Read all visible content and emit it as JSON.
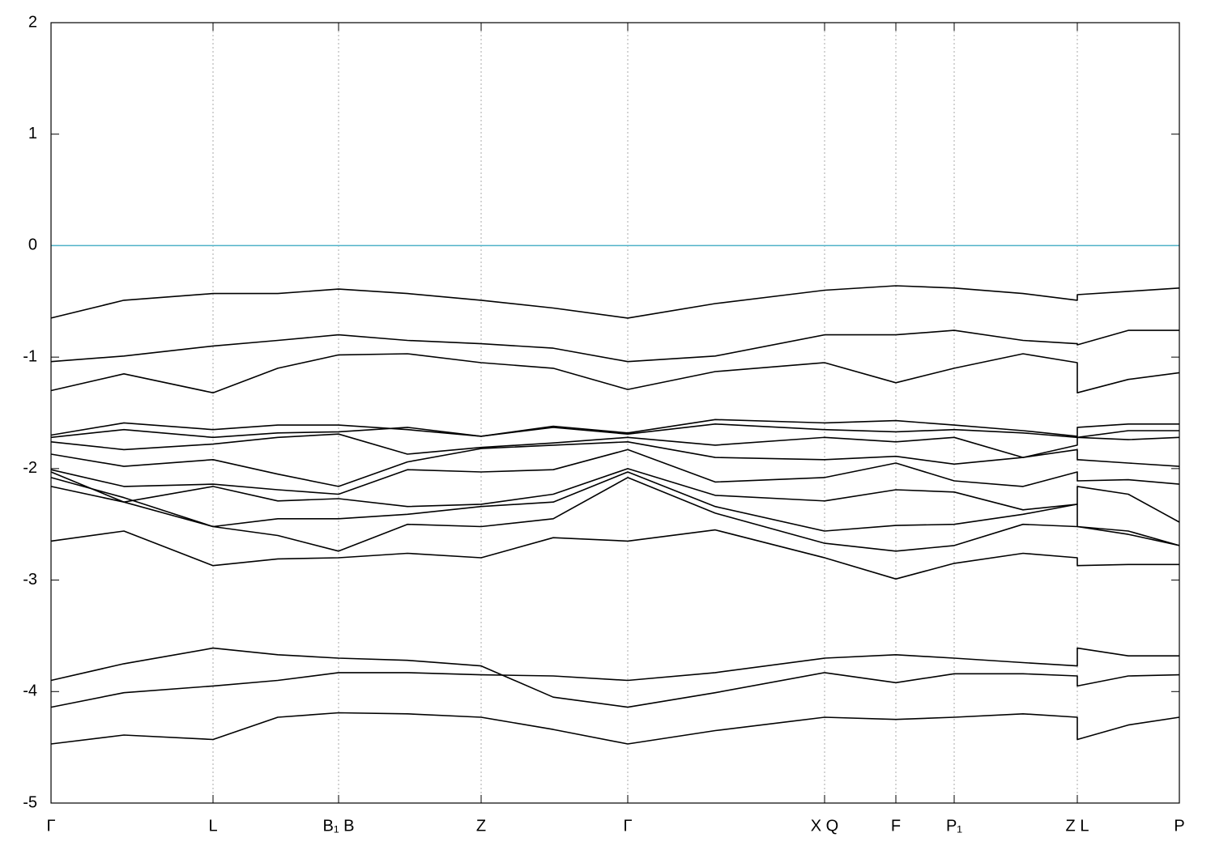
{
  "chart_data": {
    "type": "line",
    "x": [
      0,
      0.9,
      2.0,
      2.8,
      3.55,
      4.4,
      5.31,
      6.2,
      7.12,
      8.2,
      9.55,
      10.43,
      11.15,
      12.0,
      12.67,
      12.67,
      13.3,
      13.93
    ],
    "xlim": [
      0,
      13.93
    ],
    "xticks": [
      {
        "value": 0,
        "label": "Γ"
      },
      {
        "value": 2.0,
        "label": "L"
      },
      {
        "value": 3.55,
        "label": "B₁ B"
      },
      {
        "value": 5.31,
        "label": "Z"
      },
      {
        "value": 7.12,
        "label": "Γ"
      },
      {
        "value": 9.55,
        "label": "X Q"
      },
      {
        "value": 10.43,
        "label": "F"
      },
      {
        "value": 11.15,
        "label": "P₁"
      },
      {
        "value": 12.67,
        "label": "Z L"
      },
      {
        "value": 13.93,
        "label": "P"
      }
    ],
    "ylim": [
      -5,
      2
    ],
    "yticks": [
      -5,
      -4,
      -3,
      -2,
      -1,
      0,
      1,
      2
    ],
    "grid": true,
    "line_color": "#000000",
    "zero_line": {
      "value": 0,
      "color": "#4fb2c8"
    },
    "series": [
      {
        "values": [
          -0.65,
          -0.49,
          -0.43,
          -0.43,
          -0.39,
          -0.43,
          -0.49,
          -0.56,
          -0.65,
          -0.52,
          -0.4,
          -0.36,
          -0.38,
          -0.43,
          -0.49,
          -0.44,
          -0.41,
          -0.38
        ]
      },
      {
        "values": [
          -1.04,
          -0.99,
          -0.9,
          -0.85,
          -0.8,
          -0.85,
          -0.88,
          -0.92,
          -1.04,
          -0.99,
          -0.8,
          -0.8,
          -0.76,
          -0.85,
          -0.88,
          -0.89,
          -0.76,
          -0.76
        ]
      },
      {
        "values": [
          -1.3,
          -1.15,
          -1.32,
          -1.1,
          -0.98,
          -0.97,
          -1.05,
          -1.1,
          -1.29,
          -1.13,
          -1.05,
          -1.23,
          -1.1,
          -0.97,
          -1.05,
          -1.32,
          -1.2,
          -1.14
        ]
      },
      {
        "values": [
          -1.7,
          -1.59,
          -1.65,
          -1.61,
          -1.61,
          -1.65,
          -1.71,
          -1.62,
          -1.68,
          -1.56,
          -1.59,
          -1.57,
          -1.61,
          -1.66,
          -1.71,
          -1.63,
          -1.6,
          -1.6
        ]
      },
      {
        "values": [
          -1.72,
          -1.65,
          -1.72,
          -1.68,
          -1.67,
          -1.63,
          -1.71,
          -1.63,
          -1.69,
          -1.6,
          -1.65,
          -1.67,
          -1.65,
          -1.68,
          -1.72,
          -1.72,
          -1.66,
          -1.66
        ]
      },
      {
        "values": [
          -1.76,
          -1.83,
          -1.78,
          -1.72,
          -1.69,
          -1.87,
          -1.81,
          -1.77,
          -1.72,
          -1.79,
          -1.72,
          -1.76,
          -1.72,
          -1.9,
          -1.79,
          -1.72,
          -1.74,
          -1.72
        ]
      },
      {
        "values": [
          -1.87,
          -1.98,
          -1.92,
          -2.05,
          -2.16,
          -1.94,
          -1.82,
          -1.79,
          -1.76,
          -1.9,
          -1.92,
          -1.89,
          -1.96,
          -1.9,
          -1.83,
          -1.92,
          -1.95,
          -1.98
        ]
      },
      {
        "values": [
          -2.01,
          -2.16,
          -2.14,
          -2.19,
          -2.23,
          -2.01,
          -2.03,
          -2.01,
          -1.83,
          -2.12,
          -2.08,
          -1.95,
          -2.11,
          -2.16,
          -2.03,
          -2.11,
          -2.1,
          -2.14
        ]
      },
      {
        "values": [
          -2.03,
          -2.3,
          -2.16,
          -2.29,
          -2.27,
          -2.34,
          -2.32,
          -2.23,
          -2.0,
          -2.24,
          -2.29,
          -2.19,
          -2.21,
          -2.37,
          -2.32,
          -2.16,
          -2.23,
          -2.48
        ]
      },
      {
        "values": [
          -2.08,
          -2.26,
          -2.52,
          -2.45,
          -2.45,
          -2.41,
          -2.34,
          -2.3,
          -2.03,
          -2.34,
          -2.56,
          -2.51,
          -2.5,
          -2.41,
          -2.32,
          -2.52,
          -2.59,
          -2.69
        ]
      },
      {
        "values": [
          -2.16,
          -2.3,
          -2.52,
          -2.6,
          -2.74,
          -2.5,
          -2.52,
          -2.45,
          -2.08,
          -2.4,
          -2.67,
          -2.74,
          -2.69,
          -2.5,
          -2.52,
          -2.52,
          -2.56,
          -2.69
        ]
      },
      {
        "values": [
          -2.65,
          -2.56,
          -2.87,
          -2.81,
          -2.8,
          -2.76,
          -2.8,
          -2.62,
          -2.65,
          -2.55,
          -2.8,
          -2.99,
          -2.85,
          -2.76,
          -2.8,
          -2.87,
          -2.86,
          -2.86
        ]
      },
      {
        "values": [
          -3.9,
          -3.75,
          -3.61,
          -3.67,
          -3.7,
          -3.72,
          -3.77,
          -4.05,
          -4.14,
          -4.01,
          -3.83,
          -3.92,
          -3.84,
          -3.84,
          -3.86,
          -3.95,
          -3.86,
          -3.85
        ]
      },
      {
        "values": [
          -4.14,
          -4.01,
          -3.95,
          -3.9,
          -3.83,
          -3.83,
          -3.85,
          -3.86,
          -3.9,
          -3.83,
          -3.7,
          -3.67,
          -3.7,
          -3.74,
          -3.77,
          -3.61,
          -3.68,
          -3.68
        ]
      },
      {
        "values": [
          -4.47,
          -4.39,
          -4.43,
          -4.23,
          -4.19,
          -4.2,
          -4.23,
          -4.34,
          -4.47,
          -4.35,
          -4.23,
          -4.25,
          -4.23,
          -4.2,
          -4.23,
          -4.43,
          -4.3,
          -4.23
        ]
      }
    ]
  }
}
